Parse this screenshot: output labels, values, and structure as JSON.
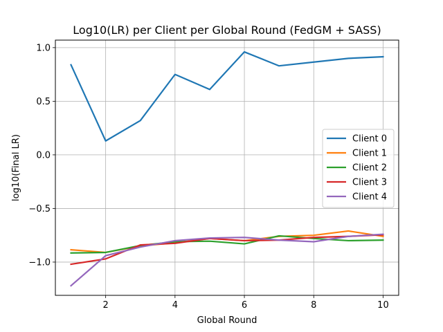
{
  "chart_data": {
    "type": "line",
    "title": "Log10(LR) per Client per Global Round (FedGM + SASS)",
    "xlabel": "Global Round",
    "ylabel": "log10(Final LR)",
    "x": [
      1,
      2,
      3,
      4,
      5,
      6,
      7,
      8,
      9,
      10
    ],
    "xlim": [
      0.55,
      10.45
    ],
    "ylim": [
      -1.31,
      1.07
    ],
    "xticks": [
      2,
      4,
      6,
      8,
      10
    ],
    "xtick_labels": [
      "2",
      "4",
      "6",
      "8",
      "10"
    ],
    "yticks": [
      -1.0,
      -0.5,
      0.0,
      0.5,
      1.0
    ],
    "ytick_labels": [
      "−1.0",
      "−0.5",
      "0.0",
      "0.5",
      "1.0"
    ],
    "grid": true,
    "legend_position": "center-right",
    "series": [
      {
        "name": "Client 0",
        "color": "#1f77b4",
        "values": [
          0.84,
          0.13,
          0.32,
          0.75,
          0.61,
          0.96,
          0.83,
          0.865,
          0.9,
          0.915
        ]
      },
      {
        "name": "Client 1",
        "color": "#ff7f0e",
        "values": [
          -0.885,
          -0.91,
          -0.85,
          -0.82,
          -0.78,
          -0.8,
          -0.76,
          -0.75,
          -0.71,
          -0.76
        ]
      },
      {
        "name": "Client 2",
        "color": "#2ca02c",
        "values": [
          -0.915,
          -0.91,
          -0.845,
          -0.81,
          -0.805,
          -0.83,
          -0.755,
          -0.78,
          -0.8,
          -0.795
        ]
      },
      {
        "name": "Client 3",
        "color": "#d62728",
        "values": [
          -1.02,
          -0.97,
          -0.84,
          -0.825,
          -0.78,
          -0.8,
          -0.795,
          -0.77,
          -0.76,
          -0.745
        ]
      },
      {
        "name": "Client 4",
        "color": "#9467bd",
        "values": [
          -1.22,
          -0.94,
          -0.86,
          -0.8,
          -0.775,
          -0.77,
          -0.795,
          -0.81,
          -0.76,
          -0.74
        ]
      }
    ]
  }
}
